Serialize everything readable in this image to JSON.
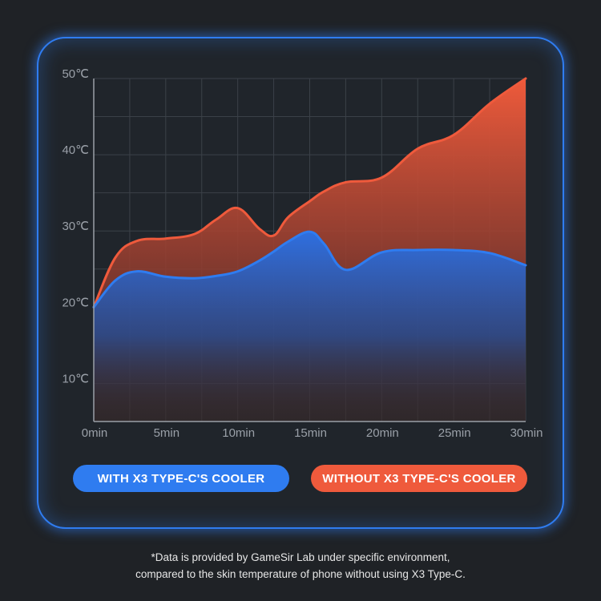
{
  "chart_data": {
    "type": "area",
    "x": [
      0,
      1.5,
      3,
      5,
      7,
      8.5,
      10,
      11.5,
      12.5,
      13.5,
      15,
      16,
      17.5,
      20,
      22.5,
      25,
      27.5,
      30
    ],
    "xticks": [
      0,
      5,
      10,
      15,
      20,
      25,
      30
    ],
    "xtick_labels": [
      "0min",
      "5min",
      "10min",
      "15min",
      "20min",
      "25min",
      "30min"
    ],
    "yticks": [
      10,
      20,
      30,
      40,
      50
    ],
    "ytick_labels": [
      "10℃",
      "20℃",
      "30℃",
      "40℃",
      "50℃"
    ],
    "xlim": [
      0,
      30
    ],
    "ylim": [
      5,
      50
    ],
    "grid": true,
    "series": [
      {
        "name": "WITHOUT X3 TYPE-C'S COOLER",
        "color": "#ef5a3c",
        "values": [
          20,
          26.5,
          28.7,
          29,
          29.6,
          31.5,
          33,
          30.3,
          29.4,
          31.8,
          33.9,
          35.2,
          36.4,
          37,
          40.8,
          42.6,
          46.7,
          50
        ]
      },
      {
        "name": "WITH X3 TYPE-C'S COOLER",
        "color": "#2f7cf0",
        "values": [
          20,
          23.5,
          24.7,
          24,
          23.8,
          24.1,
          24.7,
          26.1,
          27.3,
          28.6,
          29.9,
          28.3,
          24.9,
          27.2,
          27.5,
          27.5,
          27.1,
          25.5
        ]
      }
    ]
  },
  "legend": {
    "with_label": "WITH X3 TYPE-C'S COOLER",
    "without_label": "WITHOUT X3 TYPE-C'S COOLER"
  },
  "footnote": {
    "line1": "*Data is provided by GameSir Lab under specific environment,",
    "line2": "compared to the skin temperature of phone without using X3 Type-C."
  }
}
